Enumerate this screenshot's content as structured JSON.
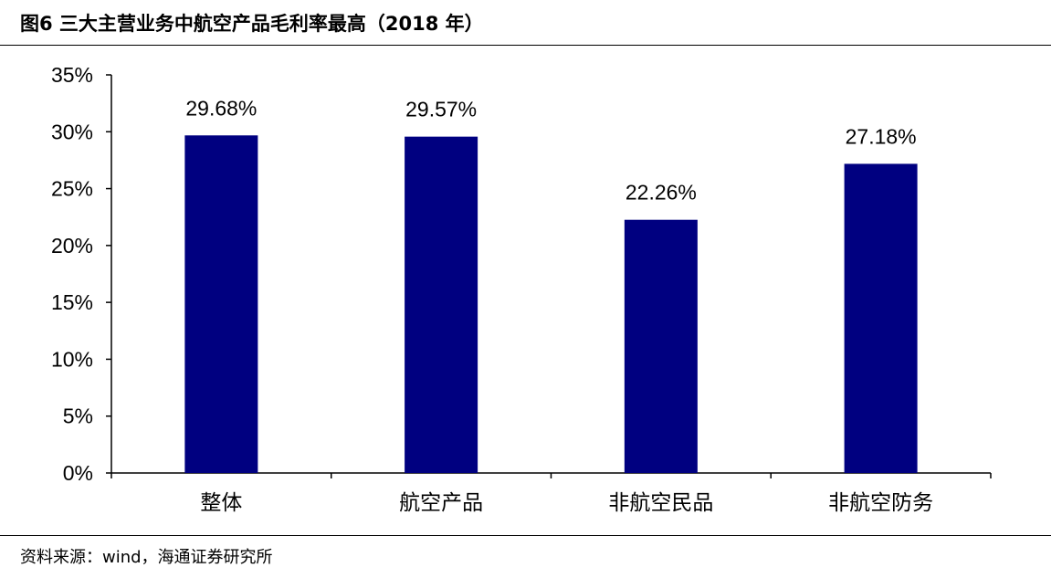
{
  "figure": {
    "title": "图6  三大主营业务中航空产品毛利率最高（2018 年）",
    "source": "资料来源：wind，海通证券研究所"
  },
  "chart_data": {
    "type": "bar",
    "categories": [
      "整体",
      "航空产品",
      "非航空民品",
      "非航空防务"
    ],
    "values": [
      29.68,
      29.57,
      22.26,
      27.18
    ],
    "data_labels": [
      "29.68%",
      "29.57%",
      "22.26%",
      "27.18%"
    ],
    "y_ticks": [
      0,
      5,
      10,
      15,
      20,
      25,
      30,
      35
    ],
    "y_tick_labels": [
      "0%",
      "5%",
      "10%",
      "15%",
      "20%",
      "25%",
      "30%",
      "35%"
    ],
    "ylim": [
      0,
      35
    ],
    "unit": "%",
    "bar_color": "#000080",
    "grid": false,
    "legend": "none"
  }
}
